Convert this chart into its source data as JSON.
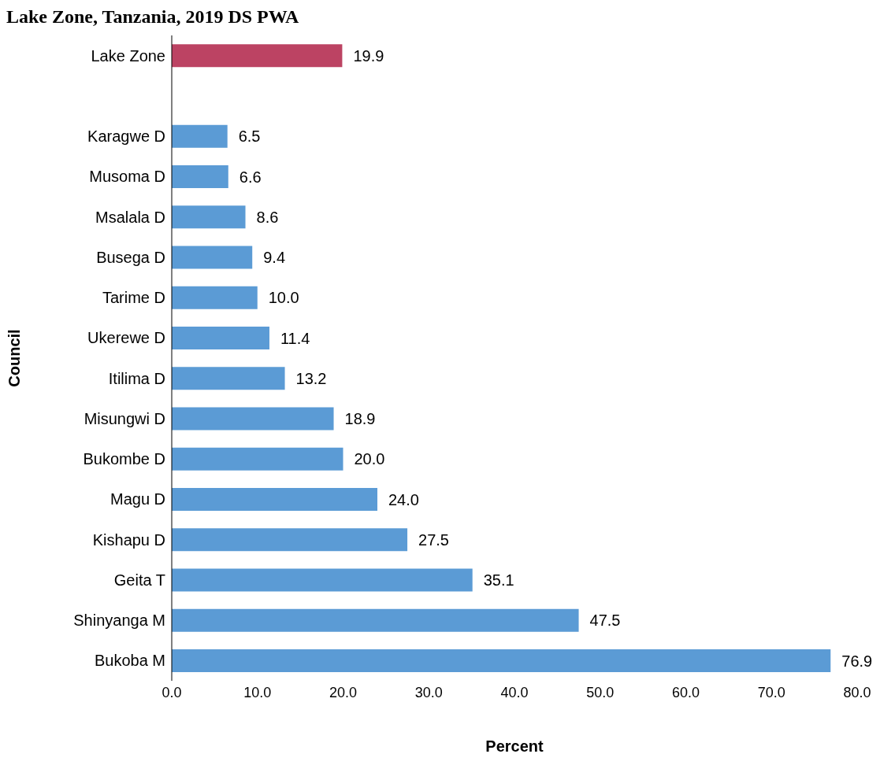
{
  "chart_data": {
    "type": "bar",
    "orientation": "horizontal",
    "title": "Lake Zone, Tanzania, 2019 DS PWA",
    "xlabel": "Percent",
    "ylabel": "Council",
    "categories": [
      "Lake Zone",
      null,
      "Karagwe D",
      "Musoma D",
      "Msalala D",
      "Busega D",
      "Tarime D",
      "Ukerewe D",
      "Itilima D",
      "Misungwi D",
      "Bukombe D",
      "Magu D",
      "Kishapu D",
      "Geita T",
      "Shinyanga M",
      "Bukoba M"
    ],
    "values": [
      19.9,
      null,
      6.5,
      6.6,
      8.6,
      9.4,
      10.0,
      11.4,
      13.2,
      18.9,
      20.0,
      24.0,
      27.5,
      35.1,
      47.5,
      76.9
    ],
    "value_labels": [
      "19.9",
      null,
      "6.5",
      "6.6",
      "8.6",
      "9.4",
      "10.0",
      "11.4",
      "13.2",
      "18.9",
      "20.0",
      "24.0",
      "27.5",
      "35.1",
      "47.5",
      "76.9"
    ],
    "colors": [
      "#bc4363",
      null,
      "#5b9bd5",
      "#5b9bd5",
      "#5b9bd5",
      "#5b9bd5",
      "#5b9bd5",
      "#5b9bd5",
      "#5b9bd5",
      "#5b9bd5",
      "#5b9bd5",
      "#5b9bd5",
      "#5b9bd5",
      "#5b9bd5",
      "#5b9bd5",
      "#5b9bd5"
    ],
    "xlim": [
      0,
      80
    ],
    "xticks": [
      {
        "value": 0,
        "label": "0.0"
      },
      {
        "value": 10,
        "label": "10.0"
      },
      {
        "value": 20,
        "label": "20.0"
      },
      {
        "value": 30,
        "label": "30.0"
      },
      {
        "value": 40,
        "label": "40.0"
      },
      {
        "value": 50,
        "label": "50.0"
      },
      {
        "value": 60,
        "label": "60.0"
      },
      {
        "value": 70,
        "label": "70.0"
      },
      {
        "value": 80,
        "label": "80.0"
      }
    ],
    "grid": false,
    "legend": false
  }
}
